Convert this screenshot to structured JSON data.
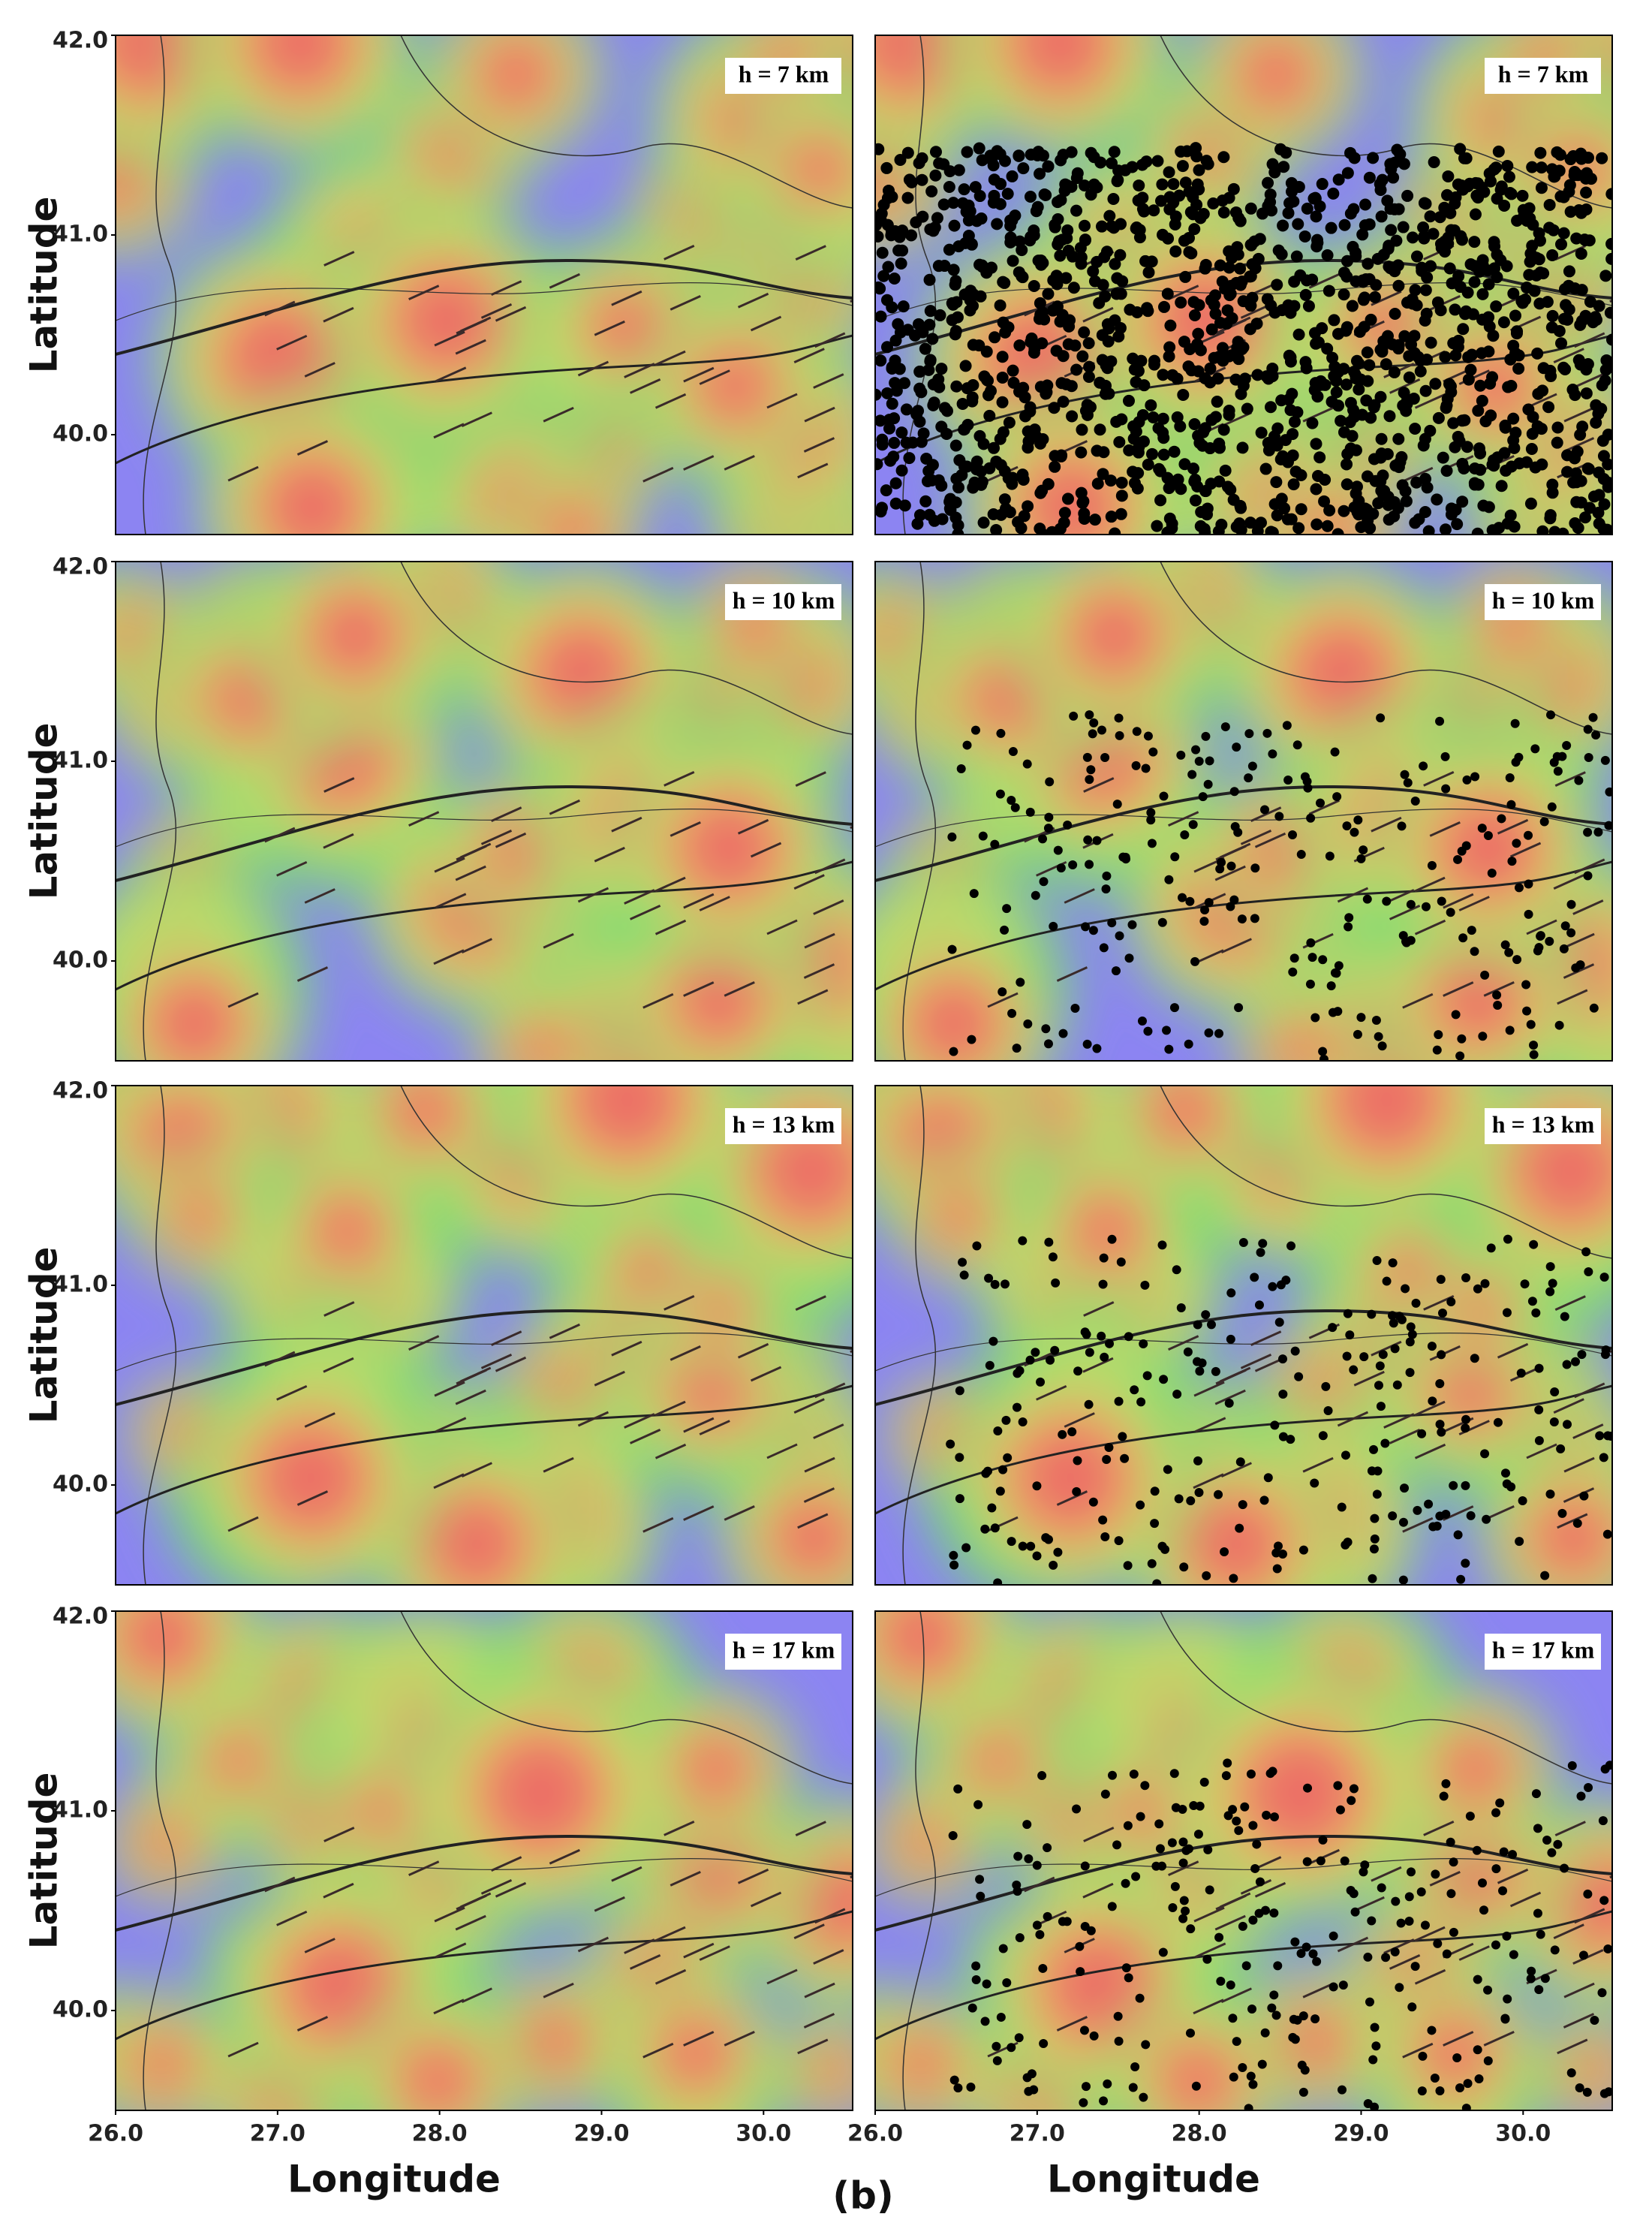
{
  "axes": {
    "y_label": "Latitude",
    "x_label": "Longitude",
    "xlim": [
      26.0,
      30.55
    ],
    "ylim": [
      39.5,
      42.0
    ],
    "xticks": [
      {
        "value": 26,
        "label": "26.0"
      },
      {
        "value": 27,
        "label": "27.0"
      },
      {
        "value": 28,
        "label": "28.0"
      },
      {
        "value": 29,
        "label": "29.0"
      },
      {
        "value": 30,
        "label": "30.0"
      }
    ],
    "yticks": [
      {
        "value": 42,
        "label": "42.0"
      },
      {
        "value": 41,
        "label": "41.0"
      },
      {
        "value": 40,
        "label": "40.0"
      }
    ]
  },
  "panels": [
    {
      "label": "h = 7 km"
    },
    {
      "label": "h = 10 km"
    },
    {
      "label": "h = 13 km"
    },
    {
      "label": "h = 17 km"
    }
  ],
  "figure_label": "(b)"
}
